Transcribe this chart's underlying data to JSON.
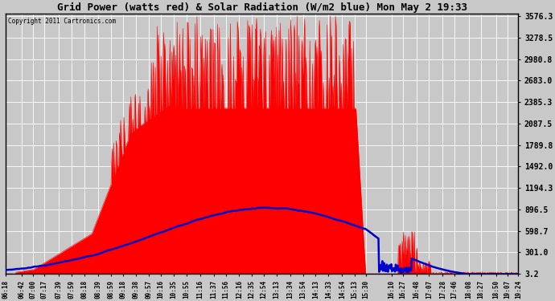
{
  "title": "Grid Power (watts red) & Solar Radiation (W/m2 blue) Mon May 2 19:33",
  "copyright": "Copyright 2011 Cartronics.com",
  "bg_color": "#c8c8c8",
  "plot_bg_color": "#c8c8c8",
  "ylim": [
    3.2,
    3576.3
  ],
  "yticks": [
    3.2,
    301.0,
    598.7,
    896.5,
    1194.3,
    1492.0,
    1789.8,
    2087.5,
    2385.3,
    2683.0,
    2980.8,
    3278.5,
    3576.3
  ],
  "x_labels": [
    "06:18",
    "06:42",
    "07:00",
    "07:17",
    "07:39",
    "07:59",
    "08:18",
    "08:39",
    "08:59",
    "09:18",
    "09:38",
    "09:57",
    "10:16",
    "10:35",
    "10:55",
    "11:16",
    "11:37",
    "11:56",
    "12:16",
    "12:35",
    "12:54",
    "13:13",
    "13:34",
    "13:54",
    "14:13",
    "14:33",
    "14:54",
    "15:13",
    "15:30",
    "16:10",
    "16:27",
    "16:48",
    "17:07",
    "17:28",
    "17:46",
    "18:08",
    "18:27",
    "18:50",
    "19:07",
    "19:24"
  ],
  "grid_color": "#ffffff",
  "red_color": "#ff0000",
  "blue_color": "#0000cd"
}
